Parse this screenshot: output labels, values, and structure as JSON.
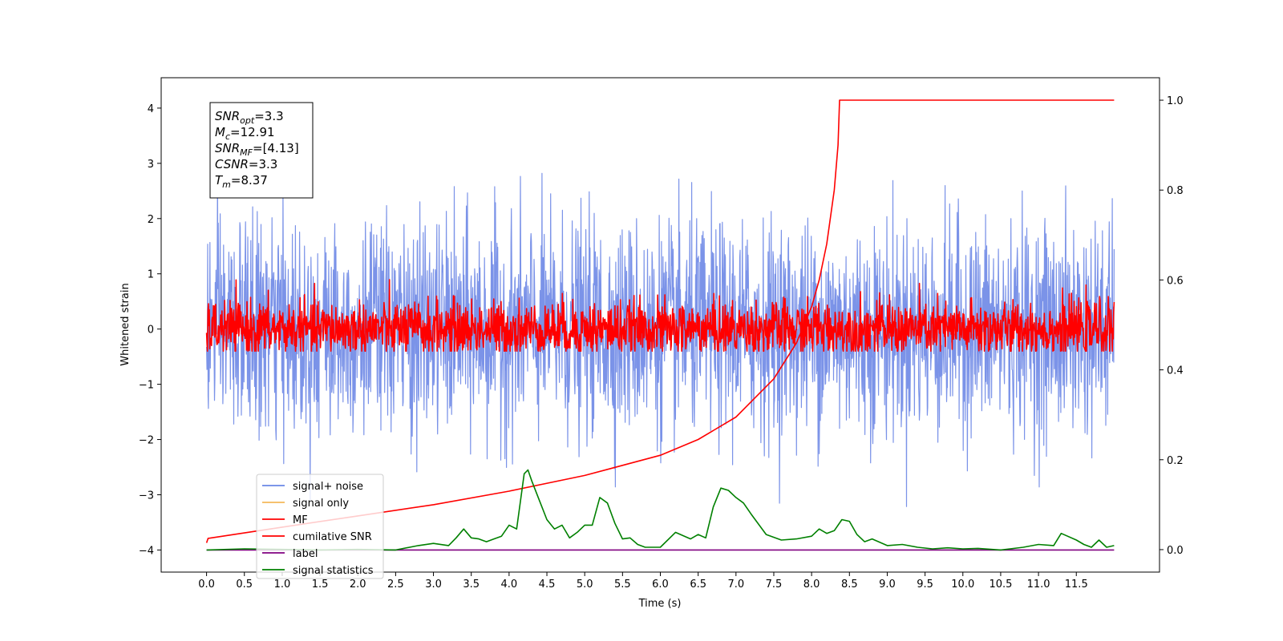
{
  "chart_data": {
    "type": "line",
    "xlabel": "Time (s)",
    "ylabel_left": "Whitened strain",
    "xlim": [
      -0.6,
      12.6
    ],
    "ylim_left": [
      -4.4,
      4.55
    ],
    "ylim_right": [
      -0.05,
      1.05
    ],
    "x_ticks": [
      0.0,
      0.5,
      1.0,
      1.5,
      2.0,
      2.5,
      3.0,
      3.5,
      4.0,
      4.5,
      5.0,
      5.5,
      6.0,
      6.5,
      7.0,
      7.5,
      8.0,
      8.5,
      9.0,
      9.5,
      10.0,
      10.5,
      11.0,
      11.5
    ],
    "x_tick_labels": [
      "0.0",
      "0.5",
      "1.0",
      "1.5",
      "2.0",
      "2.5",
      "3.0",
      "3.5",
      "4.0",
      "4.5",
      "5.0",
      "5.5",
      "6.0",
      "6.5",
      "7.0",
      "7.5",
      "8.0",
      "8.5",
      "9.0",
      "9.5",
      "10.0",
      "10.5",
      "11.0",
      "11.5"
    ],
    "y_left_ticks": [
      4,
      3,
      2,
      1,
      0,
      -1,
      -2,
      -3,
      -4
    ],
    "y_left_tick_labels": [
      "4",
      "3",
      "2",
      "1",
      "0",
      "−1",
      "−2",
      "−3",
      "−4"
    ],
    "y_right_ticks": [
      1.0,
      0.8,
      0.6,
      0.4,
      0.2,
      0.0
    ],
    "y_right_tick_labels": [
      "1.0",
      "0.8",
      "0.6",
      "0.4",
      "0.2",
      "0.0"
    ],
    "legend": {
      "location": "lower-left",
      "entries": [
        {
          "label": "signal+ noise",
          "color": "#6a87e6"
        },
        {
          "label": "signal only",
          "color": "#f5b85a"
        },
        {
          "label": "MF",
          "color": "#ff0000"
        },
        {
          "label": "cumilative SNR",
          "color": "#ff0000"
        },
        {
          "label": "label",
          "color": "#800080"
        },
        {
          "label": "signal statistics",
          "color": "#008000"
        }
      ]
    },
    "info_box": [
      {
        "main": "SNR",
        "sub": "opt",
        "rest": "=3.3"
      },
      {
        "main": "M",
        "sub": "c",
        "rest": "=12.91"
      },
      {
        "main": "SNR",
        "sub": "MF",
        "rest": "=[4.13]"
      },
      {
        "main": "CSNR",
        "sub": "",
        "rest": "=3.3"
      },
      {
        "main": "T",
        "sub": "m",
        "rest": "=8.37"
      }
    ],
    "series": [
      {
        "name": "signal+ noise",
        "axis": "left",
        "color": "#7b93e8",
        "x_range": [
          0.0,
          12.0
        ],
        "approx_std": 0.95,
        "approx_range": [
          -3.8,
          4.1
        ]
      },
      {
        "name": "MF",
        "axis": "left",
        "color": "#ff0000",
        "x_range": [
          0.0,
          12.0
        ],
        "approx_std": 0.25,
        "approx_range": [
          -0.4,
          1.0
        ]
      },
      {
        "name": "cumilative SNR",
        "axis": "right",
        "color": "#ff0000",
        "x": [
          0.0,
          0.02,
          1.0,
          2.0,
          3.0,
          4.0,
          5.0,
          6.0,
          6.5,
          7.0,
          7.5,
          7.8,
          8.0,
          8.1,
          8.2,
          8.3,
          8.35,
          8.37,
          12.0
        ],
        "y": [
          0.015,
          0.025,
          0.05,
          0.075,
          0.1,
          0.13,
          0.165,
          0.21,
          0.245,
          0.295,
          0.38,
          0.46,
          0.54,
          0.6,
          0.68,
          0.8,
          0.9,
          1.0,
          1.0
        ]
      },
      {
        "name": "label",
        "axis": "left",
        "color": "#800080",
        "x": [
          0.0,
          12.0
        ],
        "y": [
          -4.0,
          -4.0
        ]
      },
      {
        "name": "signal statistics",
        "axis": "left",
        "color": "#008000",
        "x": [
          0.0,
          0.5,
          1.0,
          1.5,
          2.0,
          2.5,
          2.8,
          3.0,
          3.2,
          3.3,
          3.4,
          3.5,
          3.6,
          3.7,
          3.8,
          3.9,
          4.0,
          4.1,
          4.2,
          4.25,
          4.3,
          4.4,
          4.5,
          4.6,
          4.7,
          4.8,
          4.9,
          5.0,
          5.1,
          5.2,
          5.3,
          5.4,
          5.5,
          5.6,
          5.7,
          5.8,
          6.0,
          6.2,
          6.4,
          6.5,
          6.6,
          6.7,
          6.8,
          6.9,
          7.0,
          7.1,
          7.2,
          7.4,
          7.6,
          7.8,
          8.0,
          8.1,
          8.2,
          8.3,
          8.4,
          8.5,
          8.6,
          8.7,
          8.8,
          9.0,
          9.2,
          9.4,
          9.6,
          9.8,
          10.0,
          10.2,
          10.5,
          10.8,
          11.0,
          11.2,
          11.3,
          11.5,
          11.6,
          11.7,
          11.8,
          11.9,
          12.0
        ],
        "y": [
          -4.0,
          -3.98,
          -3.99,
          -4.0,
          -3.99,
          -4.0,
          -3.92,
          -3.88,
          -3.92,
          -3.78,
          -3.62,
          -3.78,
          -3.8,
          -3.85,
          -3.8,
          -3.75,
          -3.55,
          -3.62,
          -2.62,
          -2.55,
          -2.75,
          -3.1,
          -3.45,
          -3.62,
          -3.55,
          -3.78,
          -3.68,
          -3.55,
          -3.55,
          -3.05,
          -3.15,
          -3.52,
          -3.8,
          -3.78,
          -3.9,
          -3.95,
          -3.95,
          -3.68,
          -3.8,
          -3.72,
          -3.78,
          -3.22,
          -2.88,
          -2.92,
          -3.05,
          -3.15,
          -3.35,
          -3.72,
          -3.82,
          -3.8,
          -3.75,
          -3.62,
          -3.7,
          -3.65,
          -3.45,
          -3.48,
          -3.72,
          -3.85,
          -3.8,
          -3.92,
          -3.9,
          -3.95,
          -3.98,
          -3.96,
          -3.98,
          -3.97,
          -4.0,
          -3.95,
          -3.9,
          -3.92,
          -3.7,
          -3.82,
          -3.9,
          -3.95,
          -3.82,
          -3.95,
          -3.92
        ]
      }
    ]
  }
}
